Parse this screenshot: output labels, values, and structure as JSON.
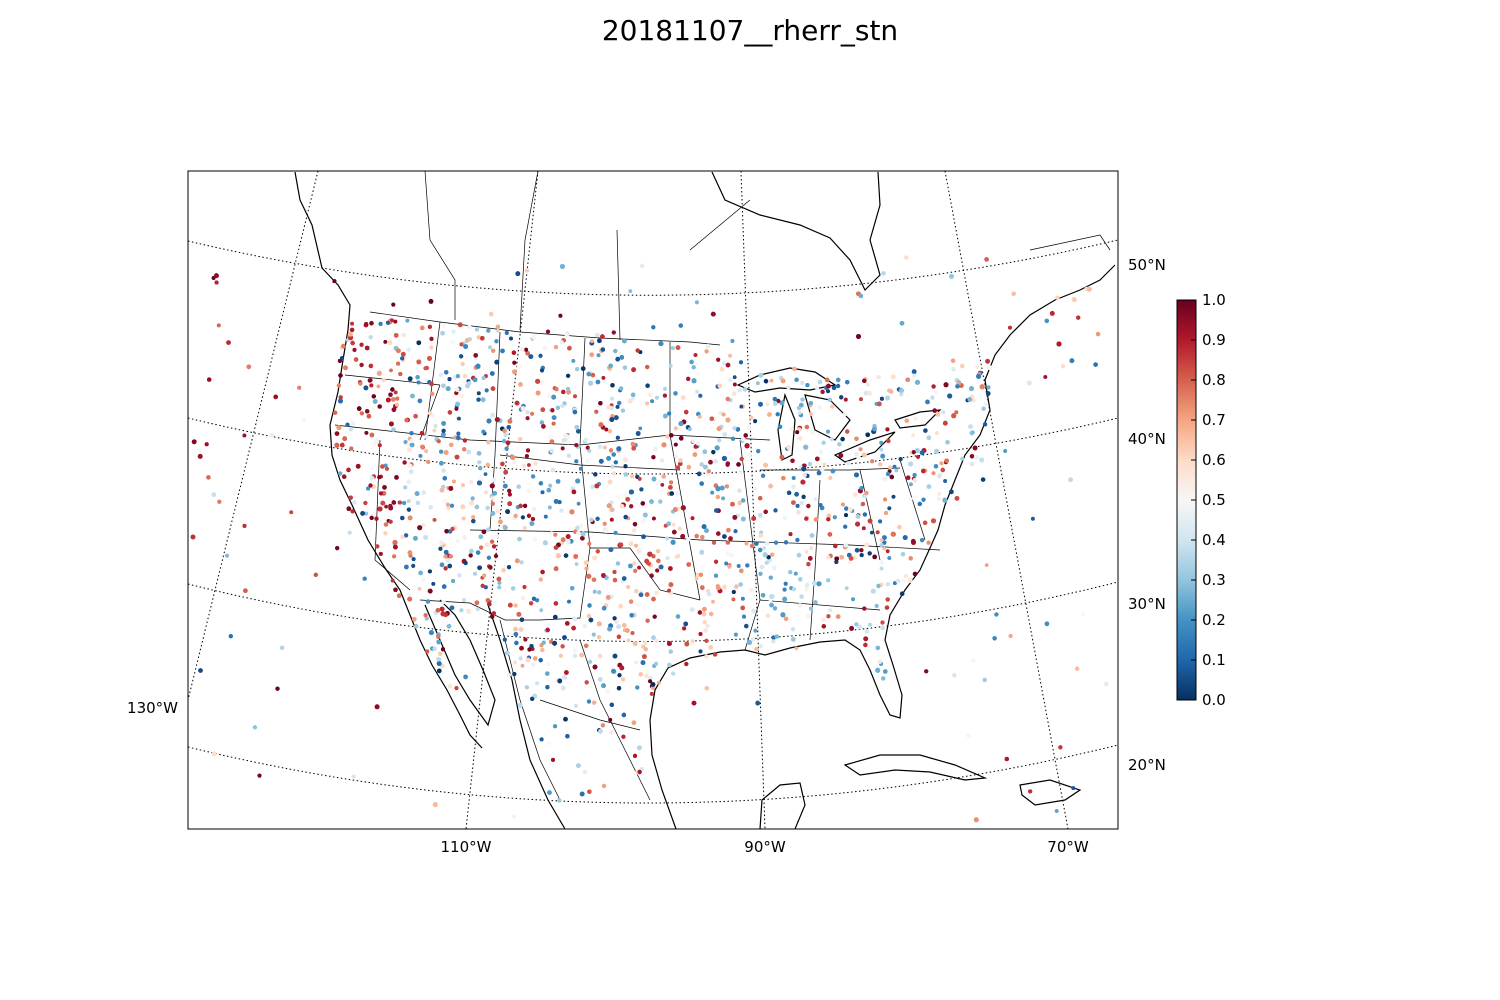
{
  "title": "20181107__rherr_stn",
  "map": {
    "parallels": [
      {
        "lat": 50,
        "label": "50°N"
      },
      {
        "lat": 40,
        "label": "40°N"
      },
      {
        "lat": 30,
        "label": "30°N"
      },
      {
        "lat": 20,
        "label": "20°N"
      }
    ],
    "meridians": [
      {
        "lon": -130,
        "label": "130°W"
      },
      {
        "lon": -110,
        "label": "110°W"
      },
      {
        "lon": -90,
        "label": "90°W"
      },
      {
        "lon": -70,
        "label": "70°W"
      }
    ],
    "projection": "lambert-conformal-conic"
  },
  "colorbar": {
    "colormap": "RdBu_r",
    "min": 0.0,
    "max": 1.0,
    "ticks": [
      "0.0",
      "0.1",
      "0.2",
      "0.3",
      "0.4",
      "0.5",
      "0.6",
      "0.7",
      "0.8",
      "0.9",
      "1.0"
    ],
    "colors": [
      "#053061",
      "#2166ac",
      "#4393c3",
      "#92c5de",
      "#d1e5f0",
      "#f7f7f7",
      "#fddbc7",
      "#f4a582",
      "#d6604d",
      "#b2182b",
      "#67001f"
    ]
  }
}
